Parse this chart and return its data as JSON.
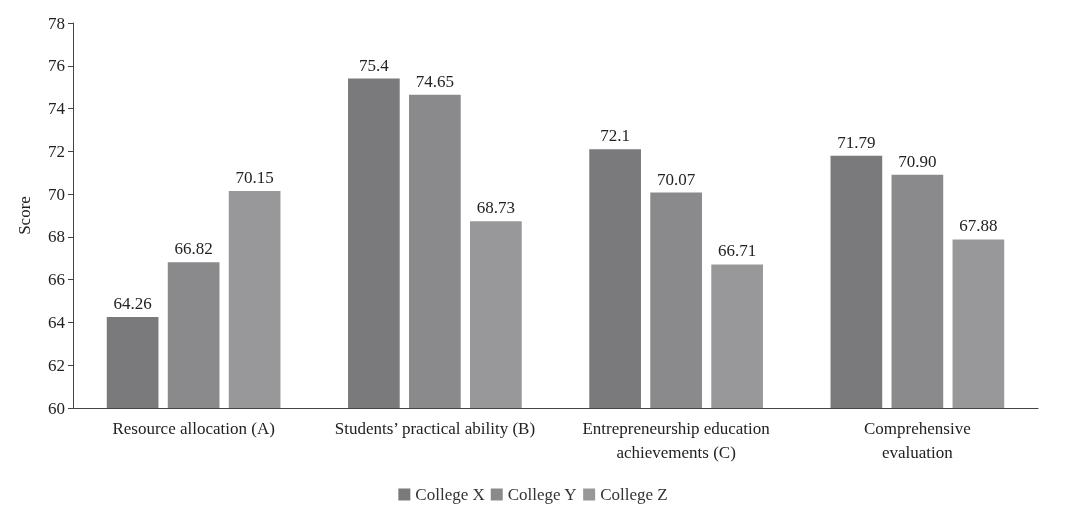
{
  "chart_data": {
    "type": "bar",
    "ylabel": "Score",
    "categories": [
      "Resource allocation (A)",
      "Students’ practical ability (B)",
      "Entrepreneurship education\nachievements (C)",
      "Comprehensive\nevaluation"
    ],
    "series": [
      {
        "name": "College X",
        "color": "#7a7a7c",
        "values": [
          64.26,
          75.4,
          72.1,
          71.79
        ],
        "value_labels": [
          "64.26",
          "75.4",
          "72.1",
          "71.79"
        ]
      },
      {
        "name": "College Y",
        "color": "#8a8a8c",
        "values": [
          66.82,
          74.65,
          70.07,
          70.9
        ],
        "value_labels": [
          "66.82",
          "74.65",
          "70.07",
          "70.90"
        ]
      },
      {
        "name": "College Z",
        "color": "#98989a",
        "values": [
          70.15,
          68.73,
          66.71,
          67.88
        ],
        "value_labels": [
          "70.15",
          "68.73",
          "66.71",
          "67.88"
        ]
      }
    ],
    "ylim": [
      60,
      78
    ],
    "yticks": [
      60,
      62,
      64,
      66,
      68,
      70,
      72,
      74,
      76,
      78
    ],
    "grid": false,
    "legend": "bottom"
  }
}
